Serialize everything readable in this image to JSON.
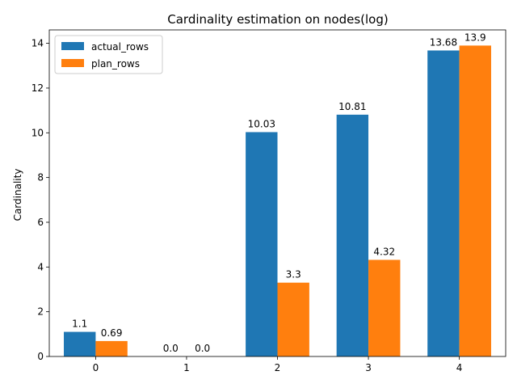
{
  "chart_data": {
    "type": "bar",
    "title": "Cardinality estimation on nodes(log)",
    "xlabel": "",
    "ylabel": "Cardinality",
    "categories": [
      "0",
      "1",
      "2",
      "3",
      "4"
    ],
    "series": [
      {
        "name": "actual_rows",
        "color": "#1f77b4",
        "values": [
          1.1,
          0.0,
          10.03,
          10.81,
          13.68
        ],
        "labels": [
          "1.1",
          "0.0",
          "10.03",
          "10.81",
          "13.68"
        ]
      },
      {
        "name": "plan_rows",
        "color": "#ff7f0e",
        "values": [
          0.69,
          0.0,
          3.3,
          4.32,
          13.9
        ],
        "labels": [
          "0.69",
          "0.0",
          "3.3",
          "4.32",
          "13.9"
        ]
      }
    ],
    "ylim": [
      0,
      14.6
    ],
    "yticks": [
      0,
      2,
      4,
      6,
      8,
      10,
      12,
      14
    ],
    "legend": "top-left",
    "grid": false
  }
}
